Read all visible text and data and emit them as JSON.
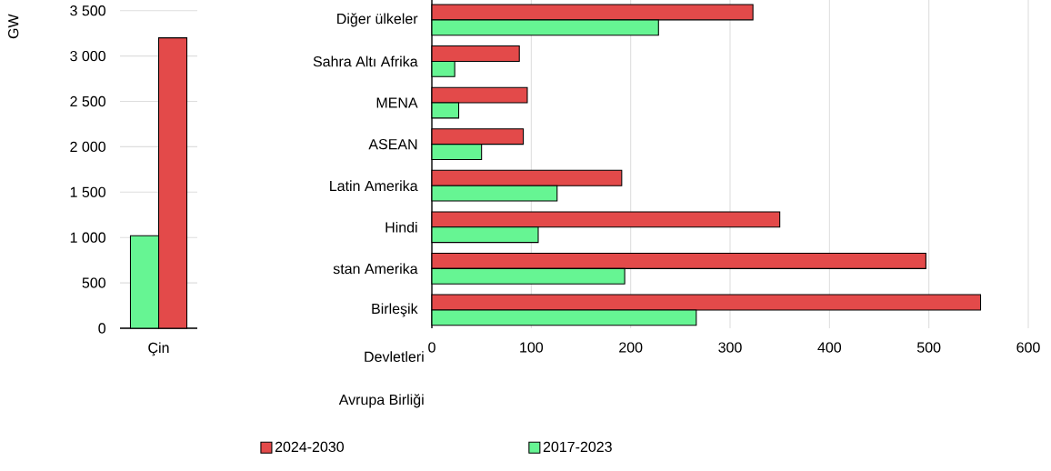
{
  "chart_data": [
    {
      "type": "bar",
      "ylabel": "GW",
      "categories": [
        "Çin"
      ],
      "series": [
        {
          "color": "#e34a4a",
          "values": [
            3200
          ]
        },
        {
          "color": "#66f593",
          "values": [
            1020
          ]
        }
      ],
      "ylim": [
        0,
        3500
      ],
      "yticks": [
        0,
        {
          "value": 500,
          "label": "500"
        },
        {
          "value": 1000,
          "label": "1 000"
        },
        {
          "value": 1500,
          "label": "1 500"
        },
        {
          "value": 2000,
          "label": "2 000"
        },
        {
          "value": 2500,
          "label": "2 500"
        },
        {
          "value": 3000,
          "label": "3 000"
        },
        {
          "value": 3500,
          "label": "3 500"
        }
      ],
      "grid": "y"
    },
    {
      "type": "bar",
      "orientation": "horizontal",
      "categories": [
        "Diğer ülkeler",
        "Sahra Altı Afrika",
        "MENA",
        "ASEAN",
        "Latin Amerika",
        "Hindi",
        "stan Amerika",
        "Birleşik"
      ],
      "series": [
        {
          "name": "2024-2030",
          "color": "#e34a4a",
          "values": [
            323,
            88,
            96,
            92,
            191,
            350,
            497,
            552
          ]
        },
        {
          "name": "2017-2023",
          "color": "#66f593",
          "values": [
            228,
            23,
            27,
            50,
            126,
            107,
            194,
            266
          ]
        }
      ],
      "xlim": [
        0,
        600
      ],
      "xticks": [
        0,
        100,
        200,
        300,
        400,
        500,
        600
      ],
      "grid": "x",
      "legend": "bottom",
      "annotations": [
        "Devletleri",
        "Avrupa Birliği"
      ]
    }
  ]
}
